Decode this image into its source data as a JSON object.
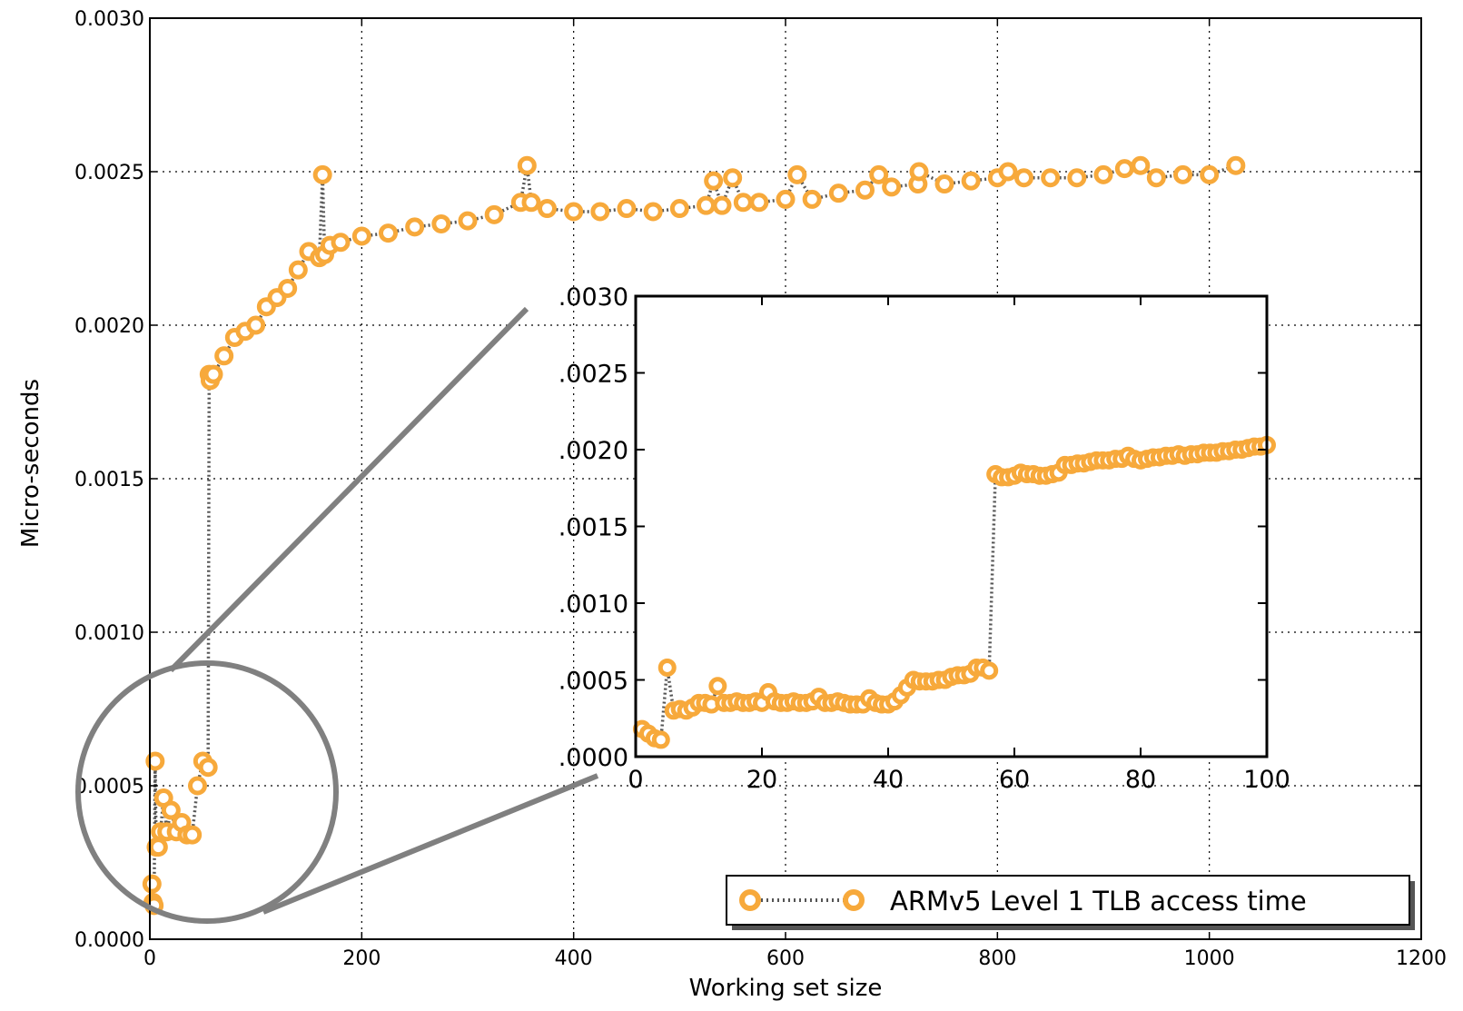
{
  "chart_data": [
    {
      "type": "scatter",
      "title": "",
      "xlabel": "Working set size",
      "ylabel": "Micro-seconds",
      "xlim": [
        0,
        1200
      ],
      "ylim": [
        0,
        0.003
      ],
      "x_ticks": [
        0,
        200,
        400,
        600,
        800,
        1000,
        1200
      ],
      "y_ticks": [
        0,
        0.0005,
        0.001,
        0.0015,
        0.002,
        0.0025,
        0.003
      ],
      "x_tick_labels": [
        "0",
        "200",
        "400",
        "600",
        "800",
        "1000",
        "1200"
      ],
      "y_tick_labels": [
        "0.0000",
        "0.0005",
        "0.0010",
        "0.0015",
        "0.0020",
        "0.0025",
        "0.0030"
      ],
      "grid": true,
      "legend": {
        "position": "lower-right",
        "entries": [
          "ARMv5 Level 1 TLB access time"
        ]
      },
      "series": [
        {
          "name": "ARMv5 Level 1 TLB access time",
          "marker": "hollow-circle",
          "line": "dotted",
          "x": [
            2,
            3,
            4,
            5,
            6,
            8,
            10,
            13,
            16,
            20,
            25,
            30,
            35,
            40,
            45,
            50,
            55,
            56,
            57,
            60,
            70,
            80,
            90,
            100,
            110,
            120,
            130,
            140,
            150,
            160,
            163,
            165,
            170,
            180,
            200,
            225,
            250,
            275,
            300,
            325,
            350,
            356,
            360,
            375,
            400,
            425,
            450,
            475,
            500,
            525,
            532,
            540,
            550,
            560,
            575,
            600,
            611,
            625,
            650,
            675,
            688,
            700,
            725,
            726,
            750,
            775,
            800,
            810,
            825,
            850,
            875,
            900,
            920,
            935,
            950,
            975,
            1000,
            1025
          ],
          "y": [
            0.00018,
            0.00012,
            0.00011,
            0.00058,
            0.0003,
            0.0003,
            0.00035,
            0.00046,
            0.00035,
            0.00042,
            0.00035,
            0.00038,
            0.00034,
            0.00034,
            0.0005,
            0.00058,
            0.00056,
            0.00184,
            0.00182,
            0.00184,
            0.0019,
            0.00196,
            0.00198,
            0.002,
            0.00206,
            0.00209,
            0.00212,
            0.00218,
            0.00224,
            0.00222,
            0.00249,
            0.00223,
            0.00226,
            0.00227,
            0.00229,
            0.0023,
            0.00232,
            0.00233,
            0.00234,
            0.00236,
            0.0024,
            0.00252,
            0.0024,
            0.00238,
            0.00237,
            0.00237,
            0.00238,
            0.00237,
            0.00238,
            0.00239,
            0.00247,
            0.00239,
            0.00248,
            0.0024,
            0.0024,
            0.00241,
            0.00249,
            0.00241,
            0.00243,
            0.00244,
            0.00249,
            0.00245,
            0.00246,
            0.0025,
            0.00246,
            0.00247,
            0.00248,
            0.0025,
            0.00248,
            0.00248,
            0.00248,
            0.00249,
            0.00251,
            0.00252,
            0.00248,
            0.00249,
            0.00249,
            0.00252
          ]
        }
      ]
    },
    {
      "type": "scatter",
      "title": "",
      "xlabel": "",
      "ylabel": "",
      "xlim": [
        0,
        100
      ],
      "ylim": [
        0,
        0.003
      ],
      "x_ticks": [
        0,
        20,
        40,
        60,
        80,
        100
      ],
      "y_ticks": [
        0,
        0.0005,
        0.001,
        0.0015,
        0.002,
        0.0025,
        0.003
      ],
      "x_tick_labels": [
        "0",
        "20",
        "40",
        "60",
        "80",
        "100"
      ],
      "y_tick_labels": [
        ".0000",
        ".0005",
        ".0010",
        ".0015",
        ".0020",
        ".0025",
        ".0030"
      ],
      "grid": false,
      "series": [
        {
          "name": "ARMv5 Level 1 TLB access time",
          "marker": "hollow-circle",
          "line": "dotted",
          "x": [
            1,
            2,
            3,
            4,
            5,
            6,
            7,
            8,
            9,
            10,
            11,
            12,
            13,
            14,
            15,
            16,
            17,
            18,
            19,
            20,
            21,
            22,
            23,
            24,
            25,
            26,
            27,
            28,
            29,
            30,
            31,
            32,
            33,
            34,
            35,
            36,
            37,
            38,
            39,
            40,
            41,
            42,
            43,
            44,
            45,
            46,
            47,
            48,
            49,
            50,
            51,
            52,
            53,
            54,
            55,
            56,
            57,
            58,
            59,
            60,
            61,
            62,
            63,
            64,
            65,
            66,
            67,
            68,
            69,
            70,
            71,
            72,
            73,
            74,
            75,
            76,
            77,
            78,
            79,
            80,
            81,
            82,
            83,
            84,
            85,
            86,
            87,
            88,
            89,
            90,
            91,
            92,
            93,
            94,
            95,
            96,
            97,
            98,
            99,
            100
          ],
          "y": [
            0.00018,
            0.00015,
            0.00012,
            0.00011,
            0.00058,
            0.0003,
            0.00031,
            0.0003,
            0.00032,
            0.00035,
            0.00035,
            0.00034,
            0.00046,
            0.00035,
            0.00035,
            0.00036,
            0.00035,
            0.00035,
            0.00036,
            0.00035,
            0.00042,
            0.00036,
            0.00035,
            0.00035,
            0.00036,
            0.00035,
            0.00035,
            0.00036,
            0.00039,
            0.00035,
            0.00035,
            0.00036,
            0.00035,
            0.00034,
            0.00034,
            0.00034,
            0.00038,
            0.00035,
            0.00034,
            0.00034,
            0.00036,
            0.0004,
            0.00045,
            0.0005,
            0.00049,
            0.00049,
            0.00049,
            0.0005,
            0.0005,
            0.00052,
            0.00053,
            0.00053,
            0.00054,
            0.00058,
            0.00058,
            0.00056,
            0.00184,
            0.00182,
            0.00182,
            0.00183,
            0.00185,
            0.00184,
            0.00184,
            0.00183,
            0.00183,
            0.00184,
            0.00185,
            0.0019,
            0.0019,
            0.00191,
            0.00191,
            0.00192,
            0.00193,
            0.00193,
            0.00193,
            0.00194,
            0.00194,
            0.00196,
            0.00194,
            0.00193,
            0.00194,
            0.00195,
            0.00195,
            0.00196,
            0.00196,
            0.00197,
            0.00196,
            0.00197,
            0.00197,
            0.00198,
            0.00198,
            0.00198,
            0.00199,
            0.00199,
            0.002,
            0.002,
            0.00201,
            0.00202,
            0.00202,
            0.00203
          ]
        }
      ]
    }
  ],
  "colors": {
    "marker": "#F7A93B",
    "stem": "#555555",
    "grid": "#000000",
    "zoom_annotation": "#808080"
  },
  "icons": {
    "zoom_circle": "magnifier-circle",
    "legend_marker": "hollow-circle-marker"
  }
}
